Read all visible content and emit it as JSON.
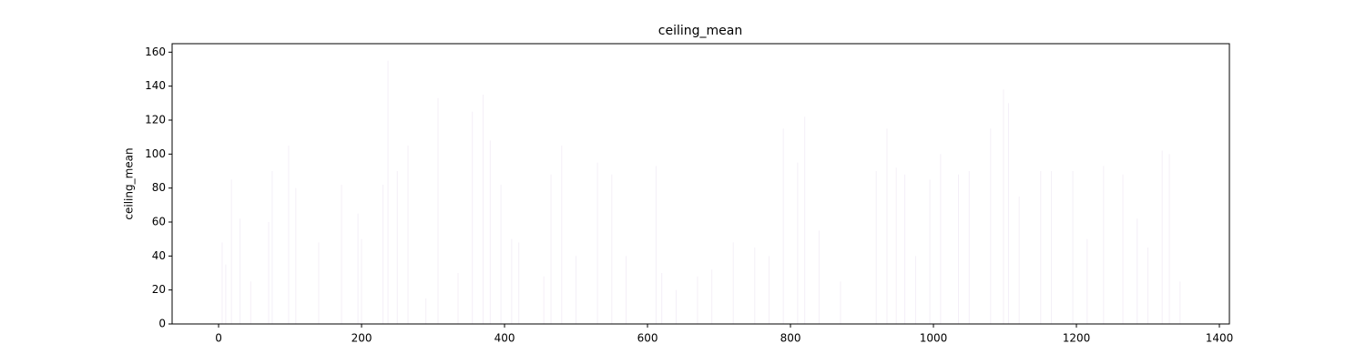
{
  "chart_data": {
    "type": "bar",
    "title": "ceiling_mean",
    "y_label": "ceiling_mean",
    "x": [
      5,
      10,
      18,
      30,
      45,
      70,
      75,
      98,
      108,
      140,
      172,
      195,
      200,
      230,
      237,
      250,
      265,
      290,
      307,
      335,
      355,
      370,
      380,
      395,
      410,
      420,
      455,
      465,
      480,
      500,
      530,
      550,
      570,
      612,
      620,
      640,
      670,
      690,
      720,
      750,
      770,
      790,
      810,
      820,
      840,
      870,
      920,
      935,
      948,
      960,
      975,
      995,
      1010,
      1035,
      1050,
      1080,
      1098,
      1105,
      1120,
      1150,
      1165,
      1195,
      1215,
      1238,
      1265,
      1285,
      1300,
      1320,
      1330,
      1345
    ],
    "values": [
      48,
      35,
      85,
      62,
      25,
      60,
      90,
      105,
      80,
      48,
      82,
      65,
      50,
      82,
      155,
      90,
      105,
      15,
      133,
      30,
      125,
      135,
      108,
      82,
      50,
      48,
      28,
      88,
      105,
      40,
      95,
      88,
      40,
      93,
      30,
      20,
      28,
      32,
      48,
      45,
      40,
      115,
      95,
      122,
      55,
      25,
      90,
      115,
      92,
      88,
      40,
      85,
      100,
      88,
      90,
      115,
      138,
      130,
      75,
      90,
      90,
      90,
      50,
      93,
      88,
      62,
      45,
      102,
      100,
      25
    ],
    "color": "#f4eff7",
    "bar_width": 0.8,
    "xlim": [
      -65,
      1414
    ],
    "xticks": [
      0,
      200,
      400,
      600,
      800,
      1000,
      1200,
      1400
    ],
    "ylim": [
      0,
      165
    ],
    "yticks": [
      0,
      20,
      40,
      60,
      80,
      100,
      120,
      140,
      160
    ]
  }
}
